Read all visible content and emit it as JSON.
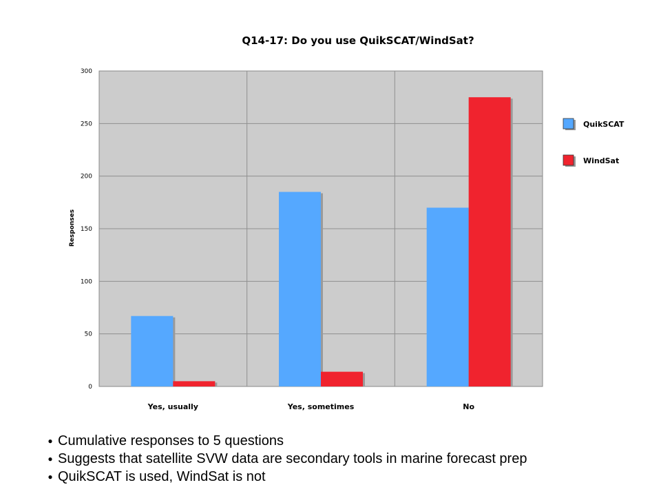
{
  "chart_data": {
    "type": "bar",
    "title": "Q14-17: Do you use QuikSCAT/WindSat?",
    "xlabel": "",
    "ylabel": "Responses",
    "categories": [
      "Yes, usually",
      "Yes, sometimes",
      "No"
    ],
    "series": [
      {
        "name": "QuikSCAT",
        "values": [
          67,
          185,
          170
        ],
        "color": "#55a8ff"
      },
      {
        "name": "WindSat",
        "values": [
          5,
          14,
          275
        ],
        "color": "#f0232e"
      }
    ],
    "ylim": [
      0,
      300
    ],
    "yticks": [
      0,
      50,
      100,
      150,
      200,
      250,
      300
    ],
    "grid": true,
    "legend": "right",
    "plot_background": "#cccccc"
  },
  "bullets": [
    "Cumulative responses to 5 questions",
    "Suggests that satellite SVW data are secondary tools in marine forecast prep",
    "QuikSCAT is used, WindSat is not"
  ],
  "bullet_glyph": "●"
}
